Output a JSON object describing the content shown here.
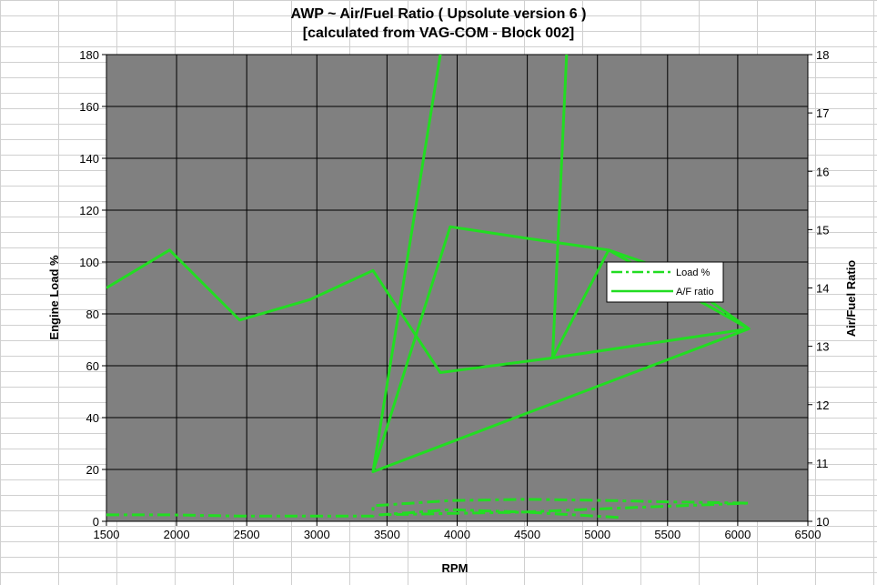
{
  "chart_data": {
    "type": "line",
    "title": [
      "AWP  ~ Air/Fuel Ratio ( Upsolute version 6 )",
      "[calculated from VAG-COM - Block 002]"
    ],
    "xlabel": "RPM",
    "ylabel_left": "Engine Load %",
    "ylabel_right": "Air/Fuel Ratio",
    "xlim": [
      1500,
      6500
    ],
    "ylim_left": [
      0,
      180
    ],
    "ylim_right": [
      10,
      18
    ],
    "x_ticks": [
      1500,
      2000,
      2500,
      3000,
      3500,
      4000,
      4500,
      5000,
      5500,
      6000,
      6500
    ],
    "y_left_ticks": [
      0,
      20,
      40,
      60,
      80,
      100,
      120,
      140,
      160,
      180
    ],
    "y_right_ticks": [
      10,
      11,
      12,
      13,
      14,
      15,
      16,
      17,
      18
    ],
    "grid": true,
    "legend_position": "right",
    "plot_background": "#808080",
    "series": [
      {
        "name": "Load %",
        "axis": "left",
        "style": "dashdot",
        "color": "#22dd22",
        "x": [
          1500,
          1950,
          2450,
          2950,
          3400,
          3400,
          3950,
          4500,
          5100,
          5500,
          6080,
          5100,
          4450,
          3900,
          3450,
          3950,
          4500,
          5150
        ],
        "values": [
          2.5,
          2.5,
          2.0,
          2.0,
          2.0,
          6.0,
          8.0,
          8.5,
          8.0,
          7.5,
          7.0,
          5.0,
          3.5,
          3.0,
          2.5,
          4.5,
          3.5,
          1.5
        ]
      },
      {
        "name": "A/F ratio",
        "axis": "right",
        "style": "solid",
        "color": "#22dd22",
        "x": [
          1500,
          1950,
          2450,
          2950,
          3400,
          3880,
          4680,
          5080,
          6080,
          3400,
          3880,
          3400,
          3950,
          4500,
          5080,
          5500,
          6080,
          4680,
          4780
        ],
        "values": [
          14.0,
          14.65,
          13.45,
          13.8,
          14.3,
          12.55,
          12.8,
          14.65,
          13.3,
          10.85,
          18.0,
          10.85,
          15.05,
          14.85,
          14.65,
          14.3,
          13.3,
          12.8,
          18.0
        ]
      }
    ]
  }
}
